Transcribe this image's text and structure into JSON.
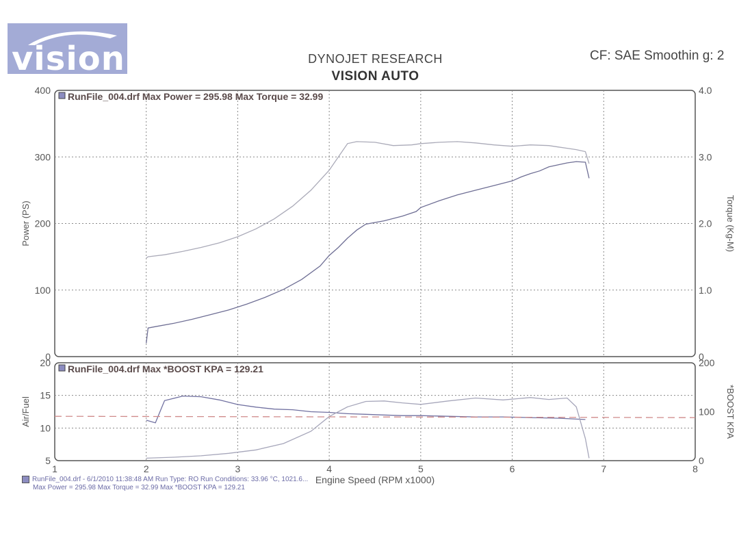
{
  "header": {
    "logo_text": "vision",
    "company": "DYNOJET RESEARCH",
    "shop": "VISION AUTO",
    "correction": "CF: SAE  Smoothin g: 2"
  },
  "chart_data": [
    {
      "type": "line",
      "title": "RunFile_004.drf Max Power = 295.98    Max Torque = 32.99",
      "xlabel": "Engine Speed (RPM x1000)",
      "xlim": [
        1,
        8
      ],
      "ylabel": "Power (PS)",
      "ylim": [
        0,
        400
      ],
      "yticks": [
        "0",
        "100",
        "200",
        "300",
        "400"
      ],
      "y2label": "Torque (Kg-M)",
      "y2lim": [
        0,
        40
      ],
      "y2ticks": [
        "0",
        "1.0",
        "2.0",
        "3.0",
        "4.0"
      ],
      "grid": true,
      "series": [
        {
          "axis": "left",
          "color": "#6e6e94",
          "x": [
            2.0,
            2.02,
            2.1,
            2.3,
            2.5,
            2.7,
            2.9,
            3.1,
            3.3,
            3.5,
            3.7,
            3.9,
            4.0,
            4.1,
            4.2,
            4.3,
            4.4,
            4.6,
            4.8,
            4.95,
            5.0,
            5.2,
            5.4,
            5.6,
            5.8,
            6.0,
            6.1,
            6.2,
            6.3,
            6.4,
            6.5,
            6.6,
            6.7,
            6.8,
            6.84
          ],
          "y": [
            20,
            43,
            45,
            50,
            56,
            63,
            70,
            79,
            89,
            101,
            116,
            136,
            152,
            164,
            178,
            190,
            199,
            204,
            211,
            218,
            224,
            234,
            243,
            250,
            257,
            264,
            270,
            275,
            279,
            285,
            288,
            291,
            293,
            292,
            268
          ]
        },
        {
          "axis": "right",
          "color": "#aaaab8",
          "x": [
            2.0,
            2.02,
            2.2,
            2.4,
            2.6,
            2.8,
            3.0,
            3.2,
            3.4,
            3.6,
            3.8,
            4.0,
            4.1,
            4.2,
            4.3,
            4.5,
            4.7,
            4.9,
            5.0,
            5.2,
            5.4,
            5.6,
            5.8,
            6.0,
            6.2,
            6.4,
            6.5,
            6.6,
            6.7,
            6.8,
            6.84
          ],
          "y": [
            14.8,
            15.0,
            15.3,
            15.8,
            16.4,
            17.1,
            18.0,
            19.2,
            20.7,
            22.6,
            25.0,
            28.0,
            30.0,
            32.0,
            32.3,
            32.2,
            31.7,
            31.8,
            32.0,
            32.2,
            32.3,
            32.1,
            31.8,
            31.6,
            31.8,
            31.7,
            31.5,
            31.3,
            31.1,
            30.8,
            29.0
          ]
        }
      ]
    },
    {
      "type": "line",
      "title": "RunFile_004.drf Max *BOOST KPA = 129.21",
      "xlabel": "Engine Speed (RPM x1000)",
      "xlim": [
        1,
        8
      ],
      "xticks": [
        "1",
        "2",
        "3",
        "4",
        "5",
        "6",
        "7",
        "8"
      ],
      "ylabel": "Air/Fuel",
      "ylim": [
        5,
        20
      ],
      "yticks": [
        "5",
        "10",
        "15",
        "20"
      ],
      "y2label": "*BOOST KPA",
      "y2lim": [
        0,
        200
      ],
      "y2ticks": [
        "0",
        "100",
        "200"
      ],
      "grid": true,
      "series": [
        {
          "axis": "left",
          "color": "#7070a0",
          "x": [
            2.0,
            2.1,
            2.2,
            2.4,
            2.6,
            2.8,
            3.0,
            3.2,
            3.4,
            3.6,
            3.8,
            4.0,
            4.2,
            4.4,
            4.6,
            4.8,
            5.0,
            5.3,
            5.6,
            5.9,
            6.2,
            6.5,
            6.8
          ],
          "y": [
            11.2,
            10.8,
            14.2,
            14.9,
            14.8,
            14.3,
            13.6,
            13.2,
            12.9,
            12.8,
            12.5,
            12.4,
            12.2,
            12.1,
            12.0,
            11.9,
            11.9,
            11.8,
            11.7,
            11.7,
            11.6,
            11.5,
            11.3
          ]
        },
        {
          "axis": "right",
          "color": "#a6a6ba",
          "x": [
            2.0,
            2.3,
            2.6,
            2.9,
            3.2,
            3.5,
            3.8,
            4.0,
            4.2,
            4.4,
            4.6,
            4.8,
            5.0,
            5.3,
            5.6,
            5.9,
            6.2,
            6.4,
            6.6,
            6.7,
            6.8,
            6.84
          ],
          "y": [
            5,
            7,
            10,
            15,
            22,
            35,
            60,
            90,
            110,
            121,
            122,
            118,
            115,
            122,
            128,
            124,
            129,
            125,
            128,
            110,
            45,
            5
          ]
        },
        {
          "axis": "left",
          "color": "#cf8a8a",
          "dashed": true,
          "x": [
            1.0,
            8.0
          ],
          "y": [
            11.8,
            11.6
          ]
        }
      ]
    }
  ],
  "footer": {
    "line1": "RunFile_004.drf - 6/1/2010 11:38:48 AM  Run Type: RO  Run Conditions: 33.96 °C, 1021.6...",
    "line2": "Max Power = 295.98  Max Torque = 32.99  Max *BOOST KPA = 129.21"
  }
}
